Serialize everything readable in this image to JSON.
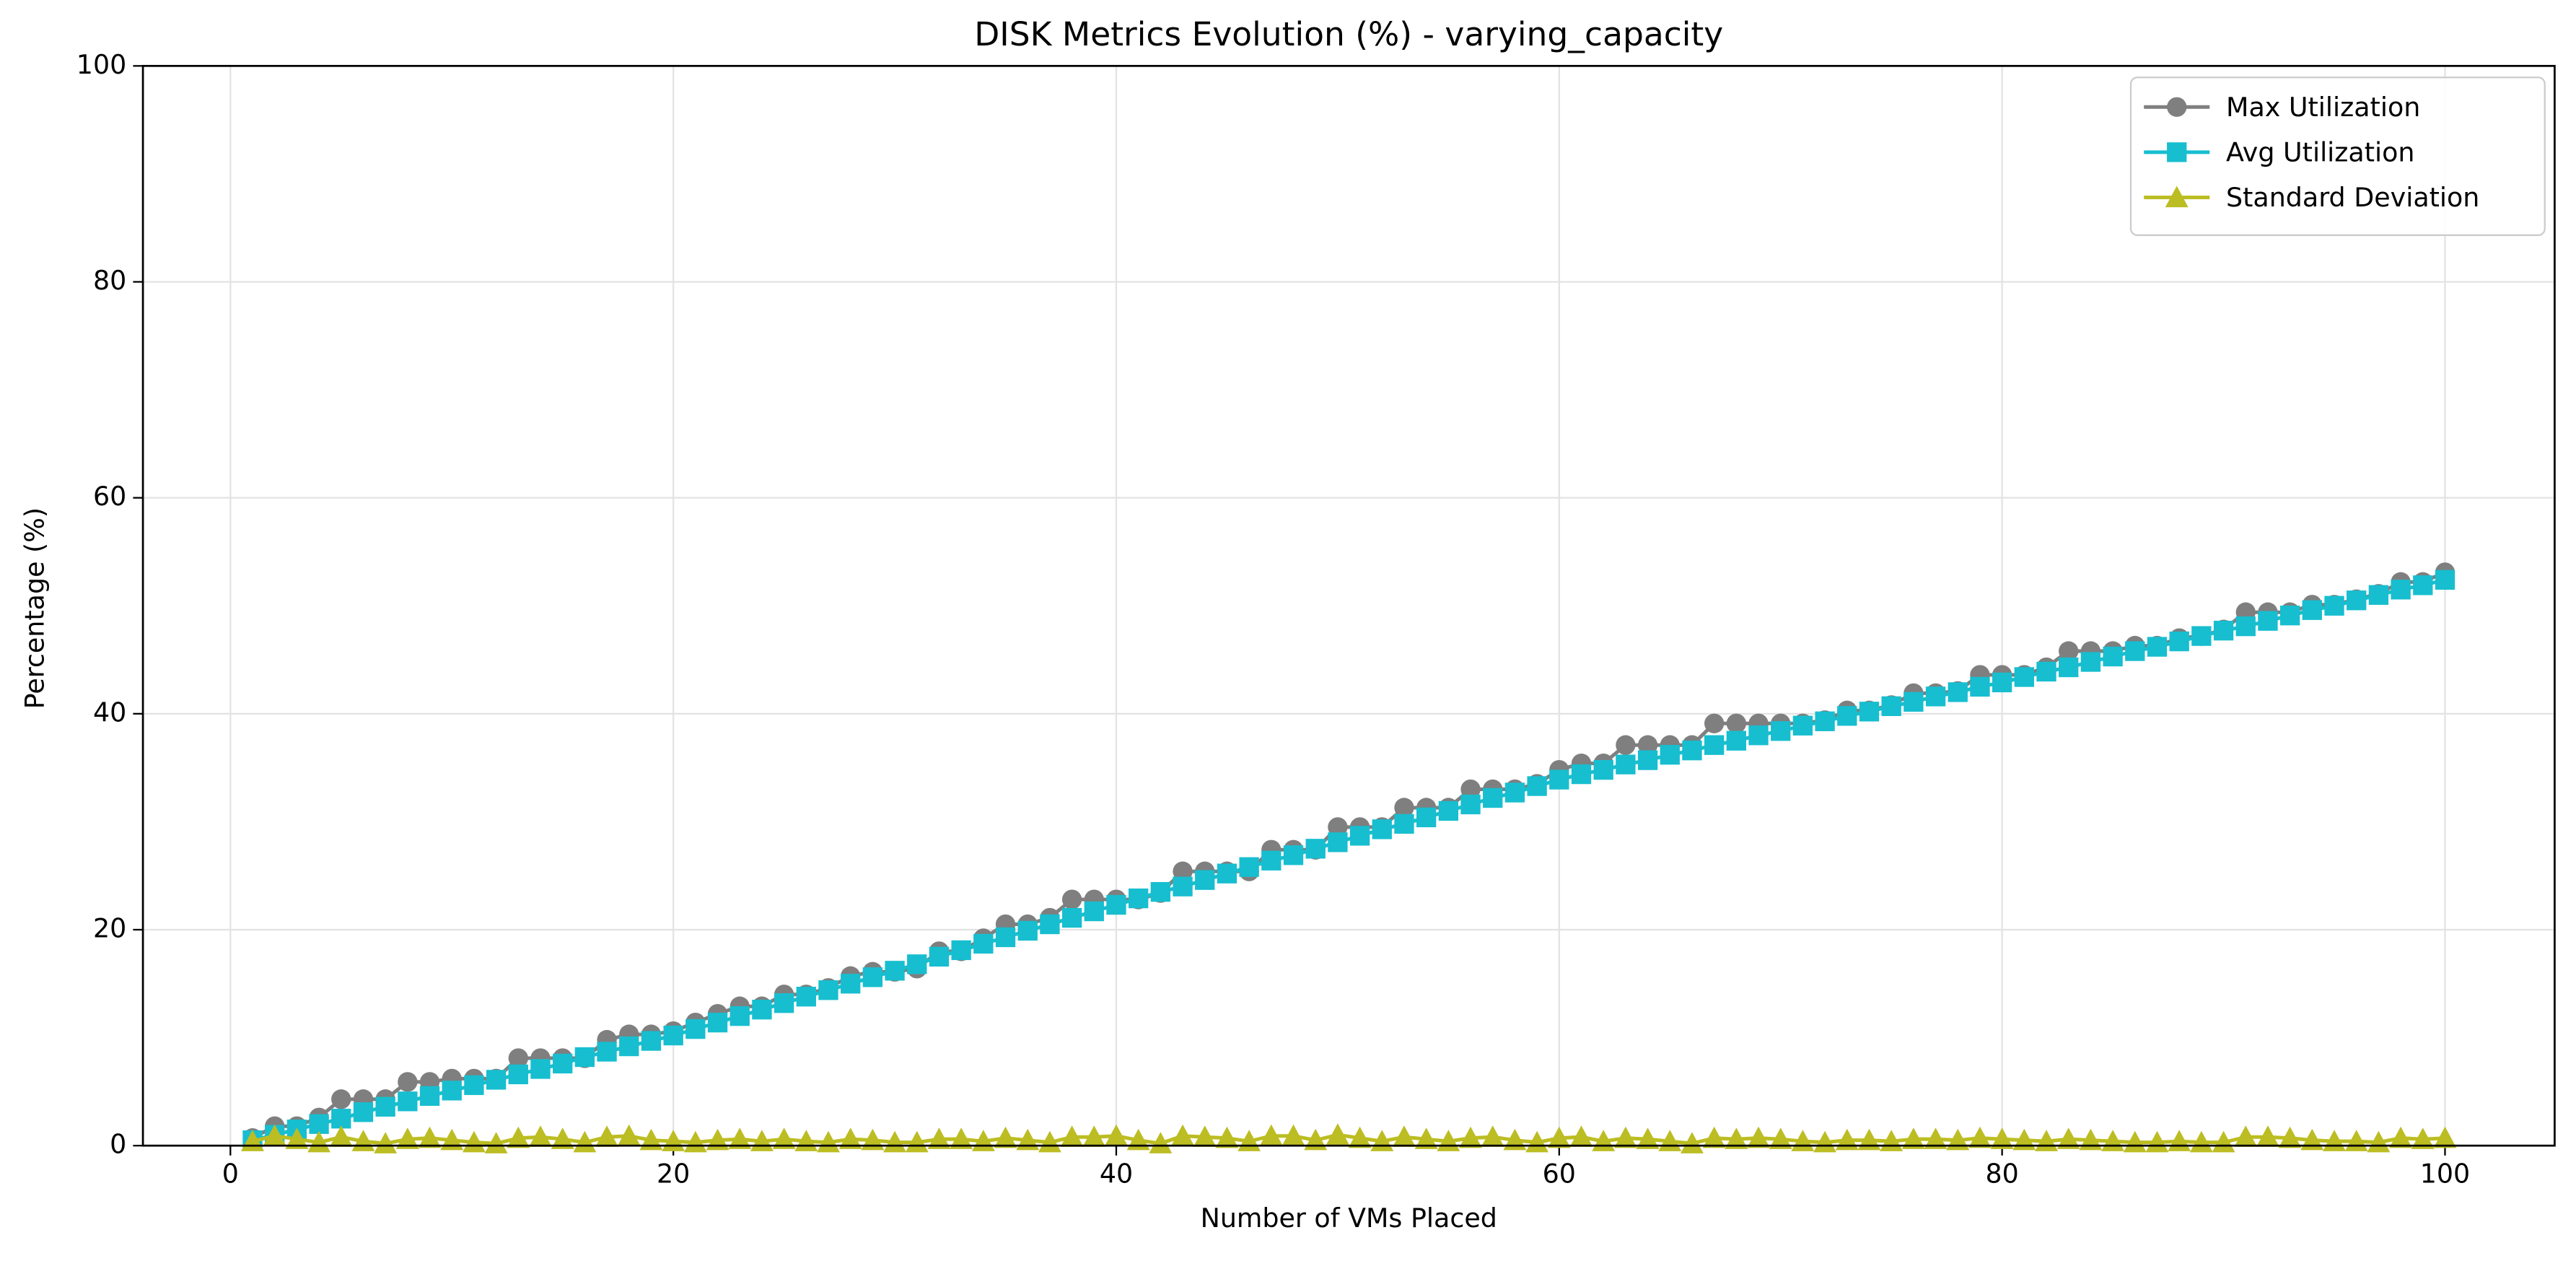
{
  "chart_data": {
    "type": "line",
    "title": "DISK Metrics Evolution (%) - varying_capacity",
    "x_label": "Number of VMs Placed",
    "y_label": "Percentage (%)",
    "x": [
      1,
      2,
      3,
      4,
      5,
      6,
      7,
      8,
      9,
      10,
      11,
      12,
      13,
      14,
      15,
      16,
      17,
      18,
      19,
      20,
      21,
      22,
      23,
      24,
      25,
      26,
      27,
      28,
      29,
      30,
      31,
      32,
      33,
      34,
      35,
      36,
      37,
      38,
      39,
      40,
      41,
      42,
      43,
      44,
      45,
      46,
      47,
      48,
      49,
      50,
      51,
      52,
      53,
      54,
      55,
      56,
      57,
      58,
      59,
      60,
      61,
      62,
      63,
      64,
      65,
      66,
      67,
      68,
      69,
      70,
      71,
      72,
      73,
      74,
      75,
      76,
      77,
      78,
      79,
      80,
      81,
      82,
      83,
      84,
      85,
      86,
      87,
      88,
      89,
      90,
      91,
      92,
      93,
      94,
      95,
      96,
      97,
      98,
      99,
      100
    ],
    "series": [
      {
        "name": "Max Utilization",
        "color": "#7f7f7f",
        "marker": "circle",
        "values": [
          0.7,
          1.8,
          1.8,
          2.6,
          4.3,
          4.3,
          4.3,
          5.9,
          5.9,
          6.2,
          6.2,
          6.2,
          8.1,
          8.1,
          8.1,
          8.1,
          9.8,
          10.3,
          10.3,
          10.6,
          11.4,
          12.2,
          12.9,
          12.9,
          14.0,
          14.0,
          14.6,
          15.7,
          16.1,
          16.1,
          16.4,
          18.0,
          18.0,
          19.2,
          20.5,
          20.5,
          21.1,
          22.8,
          22.8,
          22.8,
          22.8,
          23.4,
          25.4,
          25.4,
          25.4,
          25.4,
          27.4,
          27.4,
          27.4,
          29.5,
          29.5,
          29.5,
          31.3,
          31.3,
          31.3,
          33.0,
          33.0,
          33.0,
          33.5,
          34.8,
          35.4,
          35.4,
          37.1,
          37.1,
          37.1,
          37.1,
          39.1,
          39.1,
          39.1,
          39.1,
          39.1,
          39.4,
          40.3,
          40.3,
          40.8,
          41.9,
          41.9,
          42.1,
          43.6,
          43.6,
          43.6,
          44.3,
          45.8,
          45.8,
          45.8,
          46.3,
          46.3,
          47.0,
          47.2,
          47.8,
          49.4,
          49.4,
          49.4,
          50.1,
          50.1,
          50.6,
          51.1,
          52.2,
          52.2,
          53.1
        ]
      },
      {
        "name": "Avg Utilization",
        "color": "#17becf",
        "marker": "square",
        "values": [
          0.5,
          1.0,
          1.5,
          2.0,
          2.5,
          3.1,
          3.6,
          4.1,
          4.6,
          5.1,
          5.6,
          6.1,
          6.6,
          7.1,
          7.6,
          8.2,
          8.7,
          9.2,
          9.7,
          10.2,
          10.8,
          11.4,
          12.0,
          12.6,
          13.2,
          13.8,
          14.4,
          15.0,
          15.6,
          16.2,
          16.8,
          17.5,
          18.1,
          18.7,
          19.3,
          19.9,
          20.5,
          21.1,
          21.7,
          22.3,
          22.9,
          23.5,
          24.0,
          24.6,
          25.2,
          25.8,
          26.4,
          26.9,
          27.5,
          28.1,
          28.7,
          29.3,
          29.8,
          30.4,
          31.0,
          31.6,
          32.2,
          32.7,
          33.3,
          33.9,
          34.4,
          34.8,
          35.3,
          35.7,
          36.2,
          36.6,
          37.1,
          37.5,
          38.0,
          38.4,
          38.9,
          39.3,
          39.8,
          40.2,
          40.7,
          41.1,
          41.6,
          42.0,
          42.5,
          42.9,
          43.4,
          43.9,
          44.3,
          44.8,
          45.3,
          45.8,
          46.2,
          46.7,
          47.2,
          47.7,
          48.1,
          48.6,
          49.1,
          49.6,
          50.0,
          50.5,
          51.0,
          51.5,
          51.9,
          52.4
        ]
      },
      {
        "name": "Standard Deviation",
        "color": "#bcbd22",
        "marker": "triangle",
        "values": [
          0.4,
          0.9,
          0.6,
          0.3,
          0.8,
          0.4,
          0.2,
          0.6,
          0.7,
          0.5,
          0.3,
          0.2,
          0.7,
          0.8,
          0.6,
          0.3,
          0.8,
          0.9,
          0.5,
          0.4,
          0.3,
          0.5,
          0.6,
          0.4,
          0.6,
          0.4,
          0.3,
          0.6,
          0.5,
          0.3,
          0.3,
          0.6,
          0.6,
          0.4,
          0.7,
          0.5,
          0.3,
          0.8,
          0.8,
          0.9,
          0.5,
          0.2,
          0.9,
          0.8,
          0.7,
          0.4,
          0.9,
          0.9,
          0.5,
          1.0,
          0.7,
          0.4,
          0.8,
          0.6,
          0.4,
          0.7,
          0.8,
          0.5,
          0.3,
          0.7,
          0.8,
          0.4,
          0.7,
          0.6,
          0.4,
          0.2,
          0.7,
          0.6,
          0.7,
          0.6,
          0.4,
          0.3,
          0.5,
          0.5,
          0.4,
          0.6,
          0.6,
          0.5,
          0.7,
          0.6,
          0.5,
          0.4,
          0.6,
          0.5,
          0.4,
          0.3,
          0.3,
          0.4,
          0.3,
          0.3,
          0.8,
          0.8,
          0.7,
          0.5,
          0.4,
          0.4,
          0.3,
          0.7,
          0.6,
          0.7
        ]
      }
    ],
    "xlim": [
      -3.95,
      104.95
    ],
    "xticks": [
      0,
      20,
      40,
      60,
      80,
      100
    ],
    "ylim": [
      0,
      100
    ],
    "yticks": [
      0,
      20,
      40,
      60,
      80,
      100
    ],
    "grid": true,
    "legend": "upper right"
  }
}
